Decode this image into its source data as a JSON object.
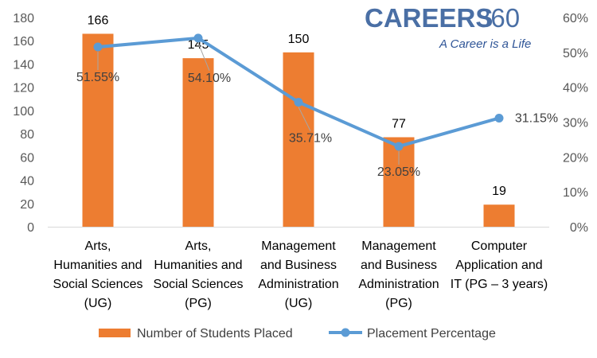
{
  "brand": {
    "name": "CAREERS",
    "number": "360",
    "tagline": "A Career is a Life"
  },
  "colors": {
    "bar": "#ed7d31",
    "line": "#5b9bd5",
    "tick_text": "#595959",
    "axis": "#d9d9d9"
  },
  "chart_data": {
    "type": "bar",
    "title": "",
    "categories": [
      [
        "Arts,",
        "Humanities and",
        "Social Sciences",
        "(UG)"
      ],
      [
        "Arts,",
        "Humanities and",
        "Social Sciences",
        "(PG)"
      ],
      [
        "Management",
        "and Business",
        "Administration",
        "(UG)"
      ],
      [
        "Management",
        "and Business",
        "Administration",
        "(PG)"
      ],
      [
        "Computer",
        "Application and",
        "IT (PG – 3 years)"
      ]
    ],
    "ylim": [
      0,
      180
    ],
    "yticks": [
      "0",
      "20",
      "40",
      "60",
      "80",
      "100",
      "120",
      "140",
      "160",
      "180"
    ],
    "y2lim": [
      0,
      60
    ],
    "y2ticks": [
      "0%",
      "10%",
      "20%",
      "30%",
      "40%",
      "50%",
      "60%"
    ],
    "series": [
      {
        "name": "Number of Students Placed",
        "type": "bar",
        "axis": "left",
        "values": [
          166,
          145,
          150,
          77,
          19
        ],
        "labels": [
          "166",
          "145",
          "150",
          "77",
          "19"
        ]
      },
      {
        "name": "Placement Percentage",
        "type": "line",
        "axis": "right",
        "values": [
          51.55,
          54.1,
          35.71,
          23.05,
          31.15
        ],
        "labels": [
          "51.55%",
          "54.10%",
          "35.71%",
          "23.05%",
          "31.15%"
        ]
      }
    ],
    "grid": false,
    "legend": "bottom"
  }
}
